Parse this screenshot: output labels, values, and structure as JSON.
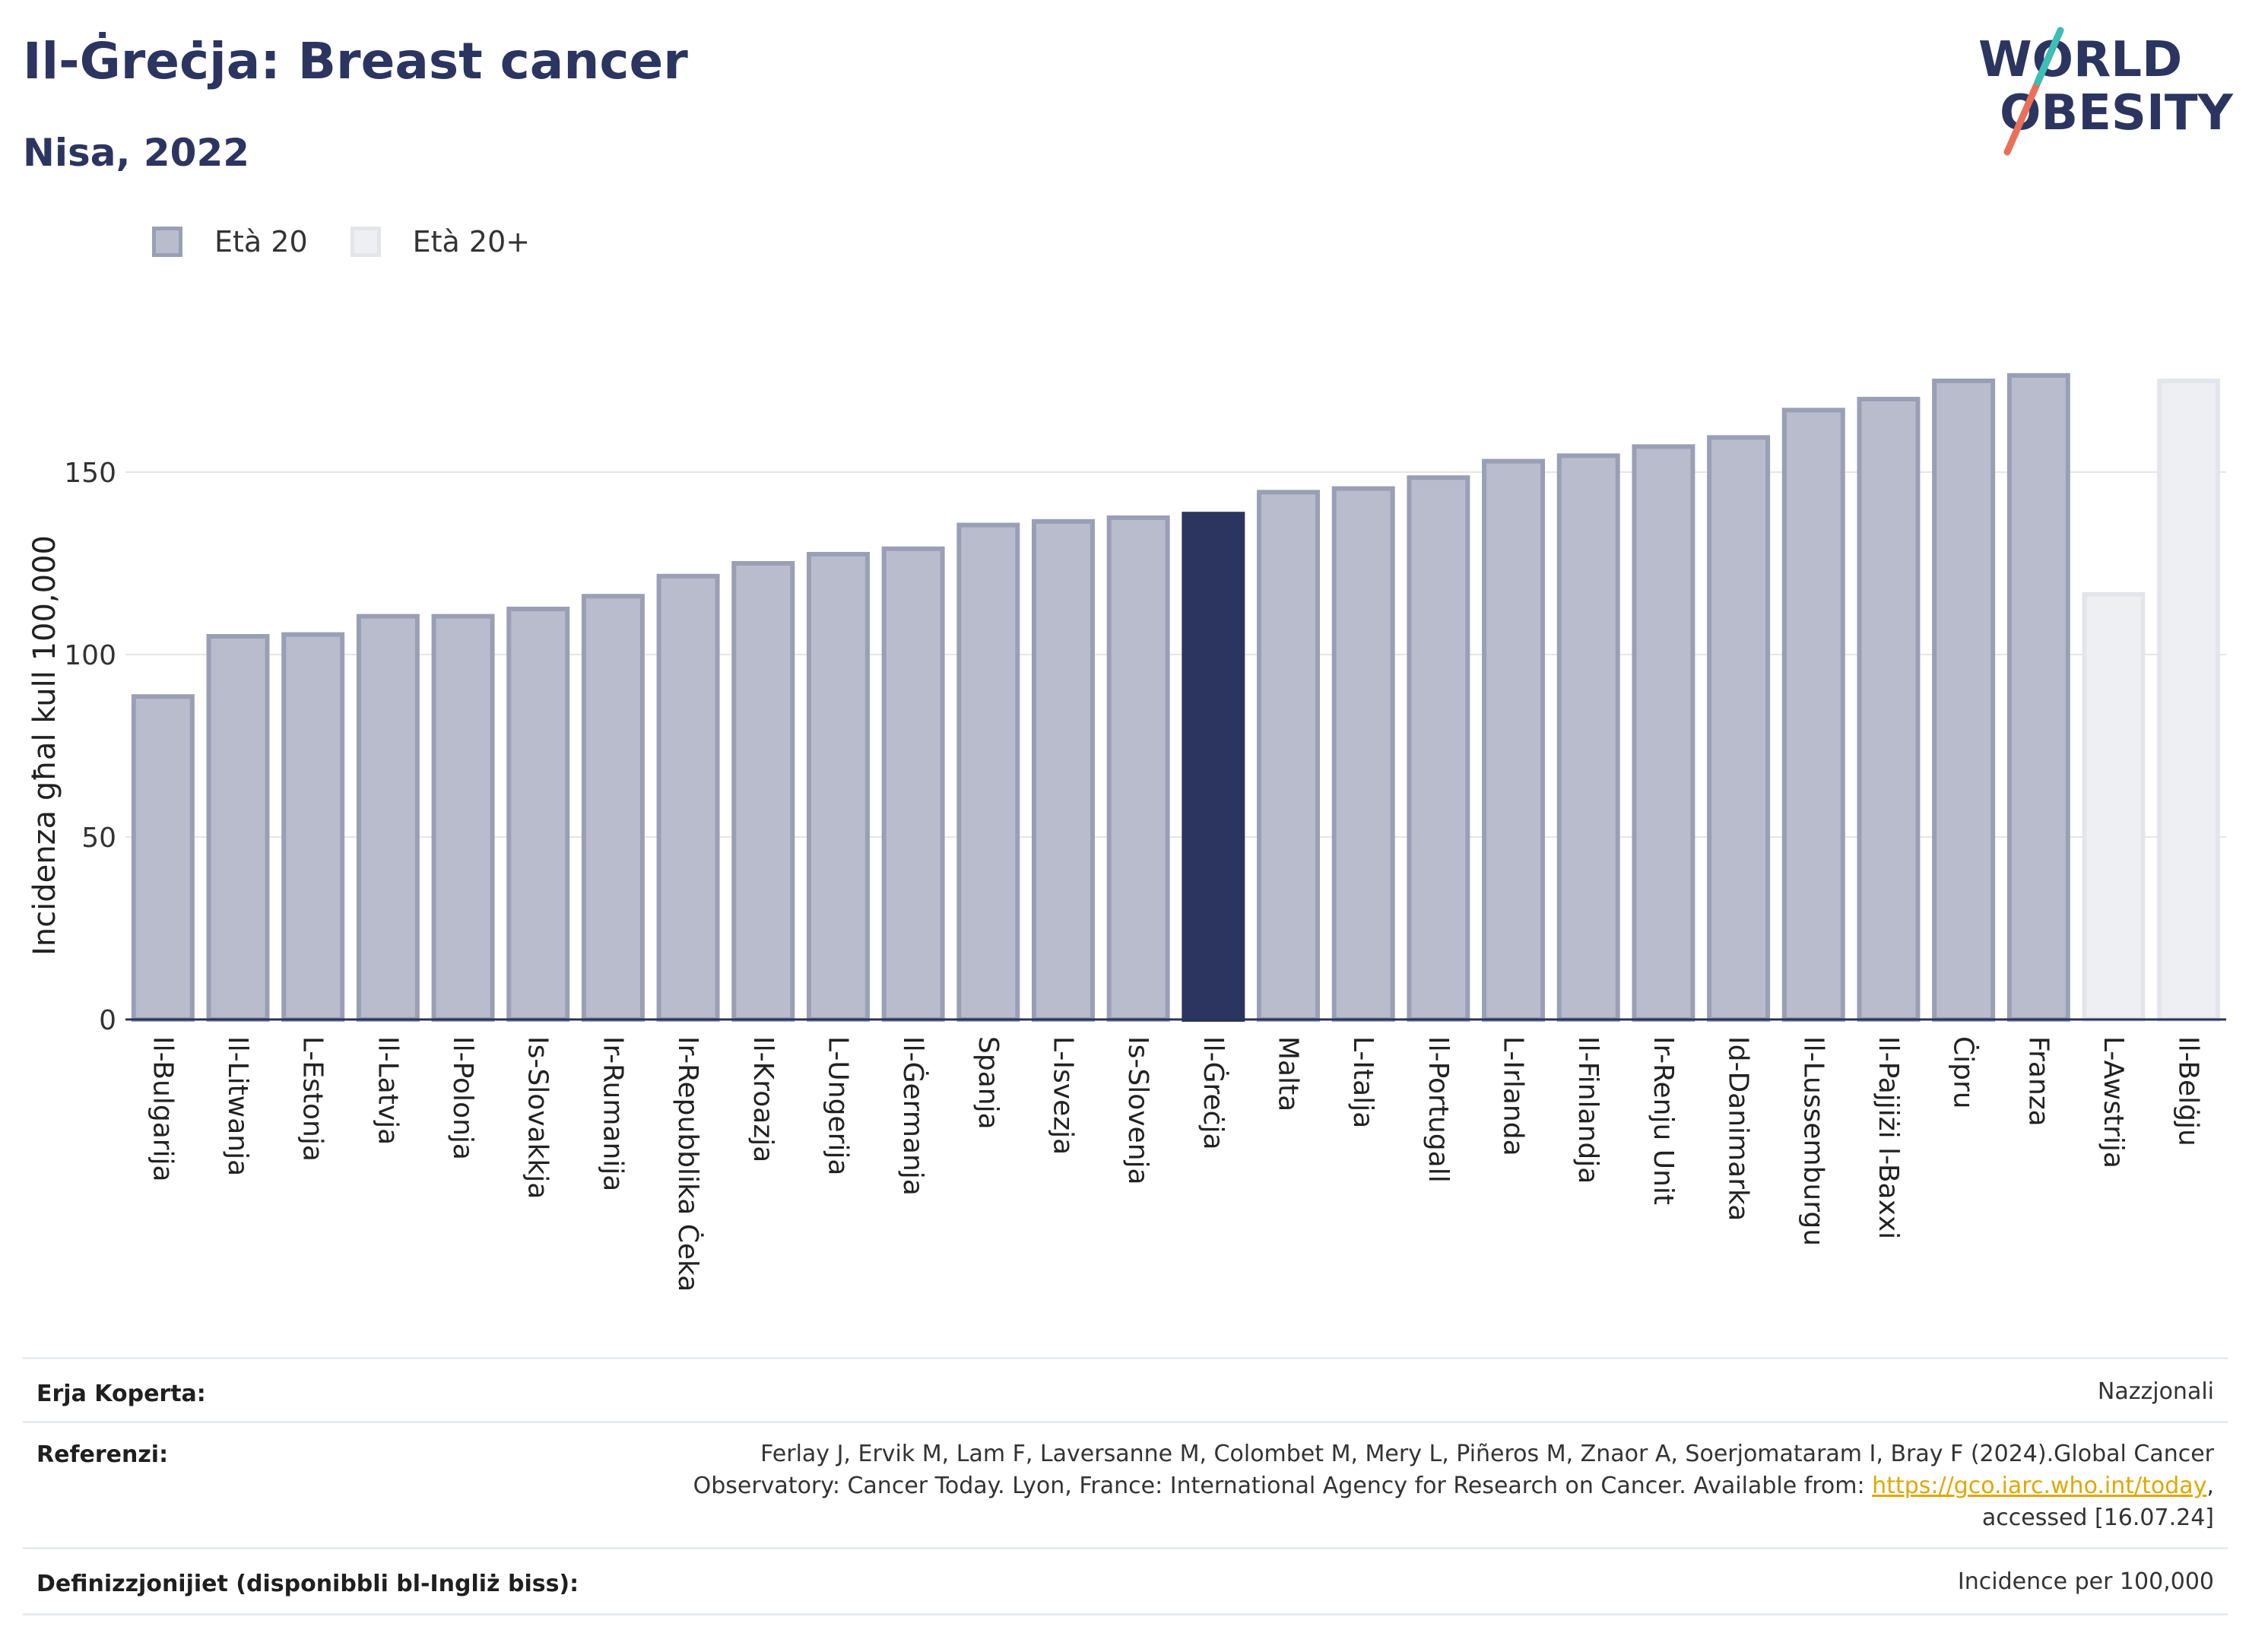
{
  "header": {
    "title": "Il-Ġreċja: Breast cancer",
    "subtitle": "Nisa, 2022"
  },
  "logo": {
    "line1": "WORLD",
    "line2": "OBESITY"
  },
  "legend": [
    {
      "label": "Età 20",
      "color": "#b9bccd"
    },
    {
      "label": "Età 20+",
      "color": "#eeeff3"
    }
  ],
  "chart_data": {
    "type": "bar",
    "ylabel": "Incidenza għal kull 100,000",
    "xlabel": "",
    "ylim": [
      0,
      190
    ],
    "yticks": [
      0,
      50,
      100,
      150
    ],
    "grid": true,
    "legend_position": "top-left",
    "categories": [
      "Il-Bulgarija",
      "Il-Litwanja",
      "L-Estonja",
      "Il-Latvja",
      "Il-Polonja",
      "Is-Slovakkja",
      "Ir-Rumanija",
      "Ir-Repubblika Ċeka",
      "Il-Kroazja",
      "L-Ungerija",
      "Il-Ġermanja",
      "Spanja",
      "L-Isvezja",
      "Is-Slovenja",
      "Il-Ġreċja",
      "Malta",
      "L-Italja",
      "Il-Portugall",
      "L-Irlanda",
      "Il-Finlandja",
      "Ir-Renju Unit",
      "Id-Danimarka",
      "Il-Lussemburgu",
      "Il-Pajjiżi l-Baxxi",
      "Ċipru",
      "Franza",
      "L-Awstrija",
      "Il-Belġju"
    ],
    "values": [
      88.5,
      105,
      105.5,
      110.5,
      110.5,
      112.5,
      116,
      121.5,
      125,
      127.5,
      129,
      135.5,
      136.5,
      137.5,
      138.5,
      144.5,
      145.5,
      148.5,
      153,
      154.5,
      157,
      159.5,
      167,
      170,
      175,
      176.5,
      116.5,
      175
    ],
    "series_group": [
      "Età 20",
      "Età 20",
      "Età 20",
      "Età 20",
      "Età 20",
      "Età 20",
      "Età 20",
      "Età 20",
      "Età 20",
      "Età 20",
      "Età 20",
      "Età 20",
      "Età 20",
      "Età 20",
      "Età 20",
      "Età 20",
      "Età 20",
      "Età 20",
      "Età 20",
      "Età 20",
      "Età 20",
      "Età 20",
      "Età 20",
      "Età 20",
      "Età 20",
      "Età 20",
      "Età 20+",
      "Età 20+"
    ],
    "highlight": "Il-Ġreċja",
    "colors": {
      "base": "#b9bccd",
      "base_border": "#9a9fb5",
      "plus": "#eeeff3",
      "plus_border": "#e4e5ea",
      "highlight": "#2b3560",
      "axis": "#273359",
      "grid": "#e6e6e6"
    }
  },
  "footer": {
    "coverage_label": "Erja Koperta:",
    "coverage_value": "Nazzjonali",
    "references_label": "Referenzi:",
    "references_line1": "Ferlay J, Ervik M, Lam F, Laversanne M, Colombet M, Mery L, Piñeros M, Znaor A, Soerjomataram I, Bray F (2024).Global Cancer",
    "references_line2": "Observatory: Cancer Today. Lyon, France: International Agency for Research on Cancer. Available from: ",
    "references_link": "https://gco.iarc.who.int/today",
    "references_line2_end": ",",
    "references_line3": "accessed [16.07.24]",
    "definitions_label": "Definizzjonijiet (disponibbli bl-Ingliż biss):",
    "definitions_value": "Incidence per 100,000"
  }
}
